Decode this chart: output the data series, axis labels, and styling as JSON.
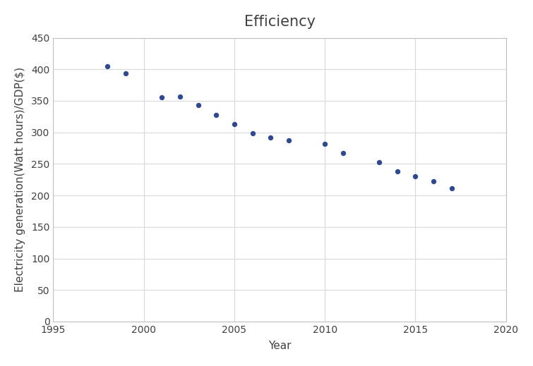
{
  "title": "Efficiency",
  "xlabel": "Year",
  "ylabel": "Electricity generation(Watt hours)/GDP($)",
  "years": [
    1998,
    1999,
    2001,
    2002,
    2003,
    2004,
    2005,
    2006,
    2007,
    2008,
    2010,
    2011,
    2013,
    2014,
    2015,
    2016,
    2017
  ],
  "values": [
    405,
    393,
    356,
    357,
    343,
    328,
    313,
    299,
    292,
    287,
    282,
    267,
    253,
    238,
    230,
    223,
    211
  ],
  "xlim": [
    1995,
    2020
  ],
  "ylim": [
    0,
    450
  ],
  "yticks": [
    0,
    50,
    100,
    150,
    200,
    250,
    300,
    350,
    400,
    450
  ],
  "xticks": [
    1995,
    2000,
    2005,
    2010,
    2015,
    2020
  ],
  "dot_color": "#2e4898",
  "dot_size": 28,
  "grid_color": "#d9d9d9",
  "background_color": "#ffffff",
  "title_fontsize": 15,
  "label_fontsize": 11,
  "tick_fontsize": 10,
  "title_color": "#404040",
  "label_color": "#404040",
  "tick_color": "#404040"
}
